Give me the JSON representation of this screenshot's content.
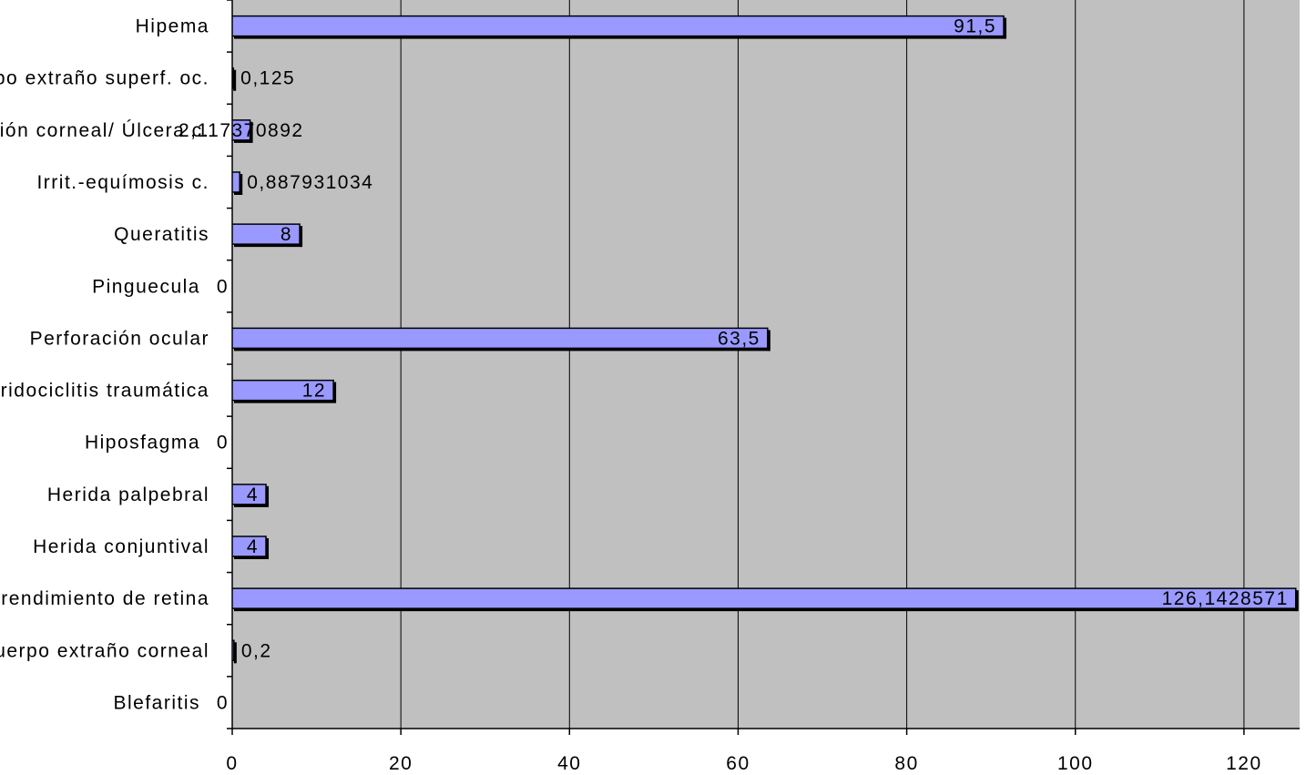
{
  "chart_data": {
    "type": "bar",
    "orientation": "horizontal",
    "categories": [
      "Hipema",
      "Cuerpo extraño superf. oc.",
      "Erosión corneal/ Úlcera c.",
      "Irrit.-equímosis c.",
      "Queratitis",
      "Pinguecula",
      "Perforación ocular",
      "Iridociclitis traumática",
      "Hiposfagma",
      "Herida palpebral",
      "Herida conjuntival",
      "Desprendimiento de retina",
      "Cuerpo extraño corneal",
      "Blefaritis"
    ],
    "series": [
      {
        "values": [
          91.5,
          0.125,
          2.117370892,
          0.887931034,
          8,
          0,
          63.5,
          12,
          0,
          4,
          4,
          126.1428571,
          0.2,
          0
        ]
      }
    ],
    "data_labels": [
      "91,5",
      "0,125",
      "2,117370892",
      "0,887931034",
      "8",
      "0",
      "63,5",
      "12",
      "0",
      "4",
      "4",
      "126,1428571",
      "0,2",
      "0"
    ],
    "xlim": [
      0,
      126.6
    ],
    "x_ticks": [
      "0",
      "20",
      "40",
      "60",
      "80",
      "100",
      "120"
    ],
    "x_tick_values": [
      0,
      20,
      40,
      60,
      80,
      100,
      120
    ],
    "grid": "vertical",
    "legend": "none",
    "colors": {
      "plot_background": "#c0c0c0",
      "bar_fill": "#9999ff",
      "bar_stroke": "#000000",
      "gridline": "#000000"
    }
  }
}
